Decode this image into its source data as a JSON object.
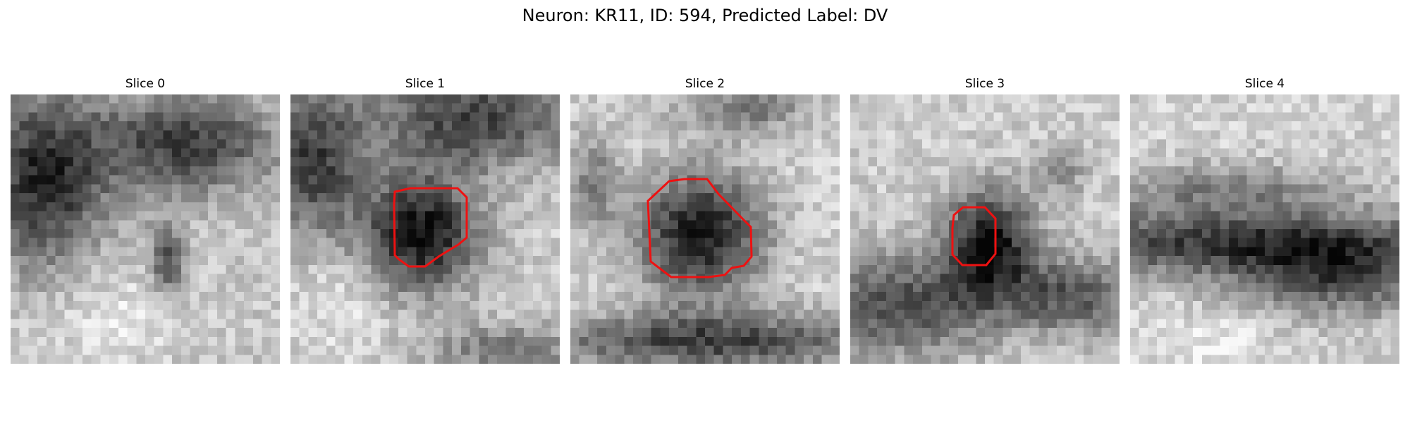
{
  "figure": {
    "title": "Neuron: KR11, ID: 594, Predicted Label: DV"
  },
  "panels": [
    {
      "title": "Slice 0",
      "has_contour": false
    },
    {
      "title": "Slice 1",
      "has_contour": true
    },
    {
      "title": "Slice 2",
      "has_contour": true
    },
    {
      "title": "Slice 3",
      "has_contour": true
    },
    {
      "title": "Slice 4",
      "has_contour": false
    }
  ],
  "colormap": "gray",
  "contour_color": "#ee1111"
}
